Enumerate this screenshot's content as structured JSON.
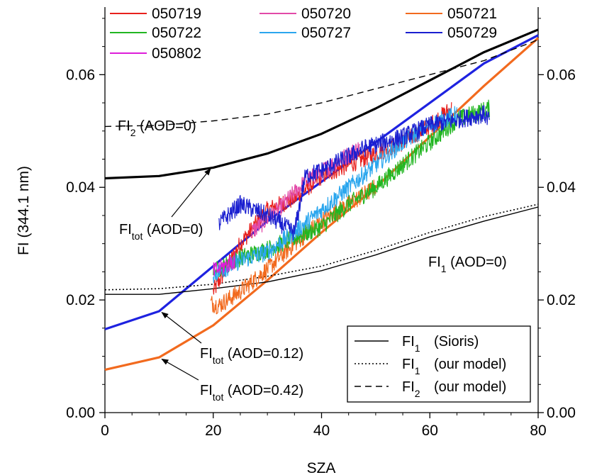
{
  "chart_data": {
    "type": "line",
    "xlabel": "SZA",
    "ylabel": "FI (344.1 nm)",
    "xlim": [
      0,
      80
    ],
    "ylim": [
      0,
      0.072
    ],
    "x_ticks": [
      0,
      20,
      40,
      60,
      80
    ],
    "x_tick_labels": [
      "0",
      "20",
      "40",
      "60",
      "80"
    ],
    "y_ticks": [
      0,
      0.02,
      0.04,
      0.06
    ],
    "y_tick_labels": [
      "0.00",
      "0.02",
      "0.04",
      "0.06"
    ],
    "grid": false,
    "measured_series": [
      {
        "name": "050719",
        "color": "#e8211d",
        "x": [
          20,
          25,
          30,
          35,
          40,
          45,
          50,
          55,
          60,
          64
        ],
        "y": [
          0.0215,
          0.03,
          0.036,
          0.038,
          0.042,
          0.044,
          0.046,
          0.048,
          0.051,
          0.054
        ]
      },
      {
        "name": "050720",
        "color": "#e24aa8",
        "x": [
          27,
          32,
          37,
          42,
          47
        ],
        "y": [
          0.032,
          0.036,
          0.041,
          0.044,
          0.047
        ]
      },
      {
        "name": "050721",
        "color": "#f26a1e",
        "x": [
          19.5,
          21,
          25,
          30,
          35,
          40,
          45,
          50
        ],
        "y": [
          0.0195,
          0.019,
          0.0215,
          0.0255,
          0.03,
          0.034,
          0.037,
          0.04
        ]
      },
      {
        "name": "050722",
        "color": "#22b622",
        "x": [
          20,
          25,
          30,
          35,
          40,
          45,
          50,
          55,
          60,
          65,
          71
        ],
        "y": [
          0.025,
          0.0275,
          0.029,
          0.031,
          0.033,
          0.037,
          0.04,
          0.044,
          0.048,
          0.052,
          0.054
        ]
      },
      {
        "name": "050727",
        "color": "#2aa6ee",
        "x": [
          20,
          25,
          30,
          35,
          40,
          45,
          50,
          55,
          60,
          65
        ],
        "y": [
          0.0245,
          0.027,
          0.0285,
          0.032,
          0.036,
          0.04,
          0.044,
          0.048,
          0.051,
          0.053
        ]
      },
      {
        "name": "050729",
        "color": "#1a1fd0",
        "x": [
          21,
          25,
          30,
          35,
          37,
          40,
          48,
          55,
          60,
          65,
          70,
          71
        ],
        "y": [
          0.0335,
          0.037,
          0.035,
          0.032,
          0.042,
          0.043,
          0.047,
          0.049,
          0.051,
          0.052,
          0.053,
          0.052
        ]
      },
      {
        "name": "050802",
        "color": "#dd1ed9",
        "x": [
          20,
          22,
          24
        ],
        "y": [
          0.025,
          0.026,
          0.027
        ]
      }
    ],
    "model_series": [
      {
        "name": "FI_tot (AOD=0)",
        "style": "thick-solid",
        "color": "#000000",
        "x": [
          0,
          10,
          20,
          30,
          40,
          50,
          60,
          70,
          80
        ],
        "y": [
          0.0416,
          0.042,
          0.0435,
          0.046,
          0.0495,
          0.054,
          0.059,
          0.064,
          0.068
        ]
      },
      {
        "name": "FI_tot (AOD=0.12)",
        "style": "thick-solid",
        "color": "#1e22e0",
        "x": [
          0,
          10,
          20,
          30,
          40,
          50,
          60,
          70,
          80
        ],
        "y": [
          0.0148,
          0.018,
          0.026,
          0.034,
          0.041,
          0.048,
          0.055,
          0.062,
          0.067
        ]
      },
      {
        "name": "FI_tot (AOD=0.42)",
        "style": "thick-solid",
        "color": "#f26a1e",
        "x": [
          0,
          10,
          20,
          30,
          40,
          50,
          60,
          70,
          80
        ],
        "y": [
          0.0076,
          0.0098,
          0.0155,
          0.0235,
          0.032,
          0.04,
          0.049,
          0.058,
          0.0665
        ]
      },
      {
        "name": "FI1 (Sioris)",
        "style": "solid",
        "color": "#000000",
        "x": [
          0,
          10,
          20,
          30,
          40,
          50,
          60,
          70,
          80
        ],
        "y": [
          0.021,
          0.021,
          0.022,
          0.0232,
          0.0252,
          0.028,
          0.0312,
          0.034,
          0.0365
        ]
      },
      {
        "name": "FI1 (our model)",
        "style": "dotted",
        "color": "#000000",
        "x": [
          0,
          10,
          20,
          30,
          40,
          50,
          60,
          70,
          80
        ],
        "y": [
          0.0218,
          0.022,
          0.0228,
          0.0242,
          0.026,
          0.0288,
          0.032,
          0.0348,
          0.037
        ]
      },
      {
        "name": "FI2 (our model)",
        "style": "dashed",
        "color": "#000000",
        "x": [
          0,
          10,
          20,
          30,
          40,
          50,
          60,
          70,
          80
        ],
        "y": [
          0.0508,
          0.051,
          0.0518,
          0.053,
          0.055,
          0.0575,
          0.06,
          0.0625,
          0.0662
        ]
      }
    ],
    "top_legend": [
      {
        "label": "050719",
        "color": "#e8211d"
      },
      {
        "label": "050720",
        "color": "#e24aa8"
      },
      {
        "label": "050721",
        "color": "#f26a1e"
      },
      {
        "label": "050722",
        "color": "#22b622"
      },
      {
        "label": "050727",
        "color": "#2aa6ee"
      },
      {
        "label": "050729",
        "color": "#1a1fd0"
      },
      {
        "label": "050802",
        "color": "#dd1ed9"
      }
    ],
    "box_legend": {
      "placement": "bottom-right",
      "entries": [
        {
          "style": "solid",
          "base": "FI",
          "sub": "1",
          "suffix": "(Sioris)"
        },
        {
          "style": "dotted",
          "base": "FI",
          "sub": "1",
          "suffix": "(our model)"
        },
        {
          "style": "dashed",
          "base": "FI",
          "sub": "2",
          "suffix": "(our model)"
        }
      ]
    },
    "annotations": [
      {
        "base": "FI",
        "sub": "2",
        "suffix": " (AOD=0)",
        "arrow": false
      },
      {
        "base": "FI",
        "sub": "1",
        "suffix": " (AOD=0)",
        "arrow": false
      },
      {
        "base": "FI",
        "sub": "tot",
        "suffix": " (AOD=0)",
        "arrow": true,
        "target": [
          19.5,
          0.0433
        ]
      },
      {
        "base": "FI",
        "sub": "tot",
        "suffix": " (AOD=0.12)",
        "arrow": true,
        "target": [
          10.5,
          0.0178
        ]
      },
      {
        "base": "FI",
        "sub": "tot",
        "suffix": " (AOD=0.42)",
        "arrow": true,
        "target": [
          10.5,
          0.0095
        ]
      }
    ]
  }
}
